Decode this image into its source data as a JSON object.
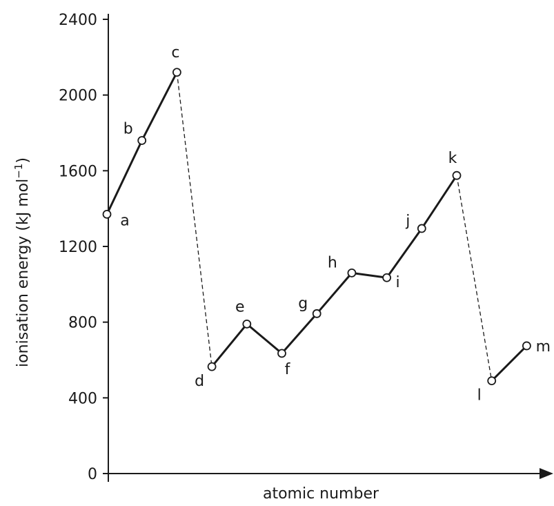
{
  "chart_data": {
    "type": "line",
    "xlabel": "atomic number",
    "ylabel": "ionisation energy (kJ mol",
    "ylabel_unit_superscript": "−1",
    "ylabel_close": ")",
    "ylim": [
      0,
      2400
    ],
    "yticks": [
      0,
      400,
      800,
      1200,
      1600,
      2000,
      2400
    ],
    "ytick_labels": [
      "0",
      "400",
      "800",
      "1200",
      "1600",
      "2000",
      "2400"
    ],
    "grid": false,
    "points": [
      {
        "label": "a",
        "x": 1,
        "y": 1370
      },
      {
        "label": "b",
        "x": 2,
        "y": 1760
      },
      {
        "label": "c",
        "x": 3,
        "y": 2120
      },
      {
        "label": "d",
        "x": 4,
        "y": 565
      },
      {
        "label": "e",
        "x": 5,
        "y": 790
      },
      {
        "label": "f",
        "x": 6,
        "y": 635
      },
      {
        "label": "g",
        "x": 7,
        "y": 845
      },
      {
        "label": "h",
        "x": 8,
        "y": 1060
      },
      {
        "label": "i",
        "x": 9,
        "y": 1035
      },
      {
        "label": "j",
        "x": 10,
        "y": 1295
      },
      {
        "label": "k",
        "x": 11,
        "y": 1575
      },
      {
        "label": "l",
        "x": 12,
        "y": 490
      },
      {
        "label": "m",
        "x": 13,
        "y": 675
      }
    ],
    "segments": [
      {
        "from": "a",
        "to": "b",
        "style": "solid"
      },
      {
        "from": "b",
        "to": "c",
        "style": "solid"
      },
      {
        "from": "c",
        "to": "d",
        "style": "dashed"
      },
      {
        "from": "d",
        "to": "e",
        "style": "solid"
      },
      {
        "from": "e",
        "to": "f",
        "style": "solid"
      },
      {
        "from": "f",
        "to": "g",
        "style": "solid"
      },
      {
        "from": "g",
        "to": "h",
        "style": "solid"
      },
      {
        "from": "h",
        "to": "i",
        "style": "solid"
      },
      {
        "from": "i",
        "to": "j",
        "style": "solid"
      },
      {
        "from": "j",
        "to": "k",
        "style": "solid"
      },
      {
        "from": "k",
        "to": "l",
        "style": "dashed"
      },
      {
        "from": "l",
        "to": "m",
        "style": "solid"
      }
    ],
    "colors": {
      "line": "#1a1a1a",
      "marker_fill": "#ffffff"
    }
  }
}
